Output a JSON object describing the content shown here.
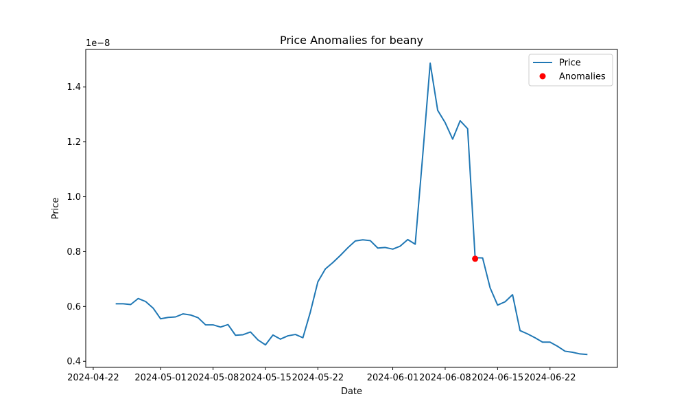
{
  "chart_data": {
    "type": "line",
    "title": "Price Anomalies for beany",
    "xlabel": "Date",
    "ylabel": "Price",
    "y_offset_label": "1e−8",
    "y_scale_exponent": -8,
    "ylim": [
      0.378,
      1.537
    ],
    "yticks": [
      0.4,
      0.6,
      0.8,
      1.0,
      1.2,
      1.4
    ],
    "ytick_labels": [
      "0.4",
      "0.6",
      "0.8",
      "1.0",
      "1.2",
      "1.4"
    ],
    "xlim": [
      "2024-04-21",
      "2024-07-01"
    ],
    "xticks": [
      "2024-04-22",
      "2024-05-01",
      "2024-05-08",
      "2024-05-15",
      "2024-05-22",
      "2024-06-01",
      "2024-06-08",
      "2024-06-15",
      "2024-06-22"
    ],
    "legend_position": "upper right",
    "grid": false,
    "series": [
      {
        "name": "Price",
        "kind": "line",
        "color": "#1f77b4",
        "points": [
          [
            "2024-04-25",
            0.61
          ],
          [
            "2024-04-26",
            0.61
          ],
          [
            "2024-04-27",
            0.607
          ],
          [
            "2024-04-28",
            0.629
          ],
          [
            "2024-04-29",
            0.618
          ],
          [
            "2024-04-30",
            0.594
          ],
          [
            "2024-05-01",
            0.555
          ],
          [
            "2024-05-02",
            0.56
          ],
          [
            "2024-05-03",
            0.562
          ],
          [
            "2024-05-04",
            0.573
          ],
          [
            "2024-05-05",
            0.569
          ],
          [
            "2024-05-06",
            0.559
          ],
          [
            "2024-05-07",
            0.533
          ],
          [
            "2024-05-08",
            0.533
          ],
          [
            "2024-05-09",
            0.525
          ],
          [
            "2024-05-10",
            0.534
          ],
          [
            "2024-05-11",
            0.495
          ],
          [
            "2024-05-12",
            0.497
          ],
          [
            "2024-05-13",
            0.507
          ],
          [
            "2024-05-14",
            0.478
          ],
          [
            "2024-05-15",
            0.46
          ],
          [
            "2024-05-16",
            0.496
          ],
          [
            "2024-05-17",
            0.481
          ],
          [
            "2024-05-18",
            0.493
          ],
          [
            "2024-05-19",
            0.498
          ],
          [
            "2024-05-20",
            0.486
          ],
          [
            "2024-05-21",
            0.58
          ],
          [
            "2024-05-22",
            0.69
          ],
          [
            "2024-05-23",
            0.737
          ],
          [
            "2024-05-24",
            0.76
          ],
          [
            "2024-05-25",
            0.786
          ],
          [
            "2024-05-26",
            0.814
          ],
          [
            "2024-05-27",
            0.839
          ],
          [
            "2024-05-28",
            0.843
          ],
          [
            "2024-05-29",
            0.84
          ],
          [
            "2024-05-30",
            0.813
          ],
          [
            "2024-05-31",
            0.815
          ],
          [
            "2024-06-01",
            0.809
          ],
          [
            "2024-06-02",
            0.82
          ],
          [
            "2024-06-03",
            0.844
          ],
          [
            "2024-06-04",
            0.827
          ],
          [
            "2024-06-05",
            1.15
          ],
          [
            "2024-06-06",
            1.487
          ],
          [
            "2024-06-07",
            1.315
          ],
          [
            "2024-06-08",
            1.27
          ],
          [
            "2024-06-09",
            1.21
          ],
          [
            "2024-06-10",
            1.277
          ],
          [
            "2024-06-11",
            1.248
          ],
          [
            "2024-06-12",
            0.778
          ],
          [
            "2024-06-13",
            0.777
          ],
          [
            "2024-06-14",
            0.668
          ],
          [
            "2024-06-15",
            0.605
          ],
          [
            "2024-06-16",
            0.617
          ],
          [
            "2024-06-17",
            0.643
          ],
          [
            "2024-06-18",
            0.512
          ],
          [
            "2024-06-19",
            0.5
          ],
          [
            "2024-06-20",
            0.486
          ],
          [
            "2024-06-21",
            0.47
          ],
          [
            "2024-06-22",
            0.47
          ],
          [
            "2024-06-23",
            0.455
          ],
          [
            "2024-06-24",
            0.437
          ],
          [
            "2024-06-25",
            0.433
          ],
          [
            "2024-06-26",
            0.427
          ],
          [
            "2024-06-27",
            0.425
          ]
        ]
      },
      {
        "name": "Anomalies",
        "kind": "scatter",
        "color": "#ff0000",
        "points": [
          [
            "2024-06-12",
            0.774
          ]
        ]
      }
    ]
  }
}
